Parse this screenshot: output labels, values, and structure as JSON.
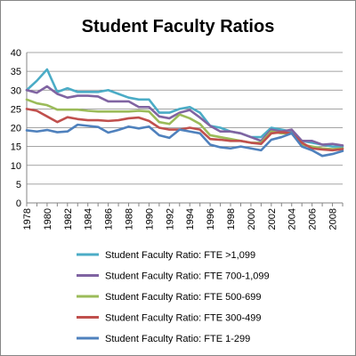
{
  "chart_data": {
    "type": "line",
    "title": "Student Faculty Ratios",
    "xlabel": "",
    "ylabel": "",
    "ylim": [
      0,
      40
    ],
    "xlim": [
      1978,
      2009
    ],
    "yticks": [
      0,
      5,
      10,
      15,
      20,
      25,
      30,
      35,
      40
    ],
    "xticks": [
      1978,
      1980,
      1982,
      1984,
      1986,
      1988,
      1990,
      1992,
      1994,
      1996,
      1998,
      2000,
      2002,
      2004,
      2006,
      2008
    ],
    "grid": "horizontal",
    "legend_position": "bottom",
    "x": [
      1978,
      1979,
      1980,
      1981,
      1982,
      1983,
      1984,
      1985,
      1986,
      1987,
      1988,
      1989,
      1990,
      1991,
      1992,
      1993,
      1994,
      1995,
      1996,
      1997,
      1998,
      1999,
      2000,
      2001,
      2002,
      2003,
      2004,
      2005,
      2006,
      2007,
      2008,
      2009
    ],
    "series": [
      {
        "name": "Student Faculty Ratio: FTE >1,099",
        "color": "#4BACC6",
        "values": [
          30,
          32.5,
          35.5,
          29.5,
          30.5,
          29.5,
          29.5,
          29.5,
          30,
          29,
          28,
          27.5,
          27.5,
          24,
          24,
          25,
          25.5,
          24,
          20.5,
          20,
          19,
          18.5,
          17.5,
          17.5,
          20,
          19.5,
          19,
          16.5,
          16,
          15.5,
          15,
          15
        ]
      },
      {
        "name": "Student Faculty Ratio: FTE 700-1,099",
        "color": "#8064A2",
        "values": [
          30,
          29.3,
          31,
          29,
          28,
          28.5,
          28.5,
          28.3,
          27,
          27,
          27,
          25.5,
          25.5,
          23,
          22.5,
          24,
          24.7,
          22.7,
          20.5,
          19,
          19,
          18.5,
          17.5,
          16.5,
          19.5,
          19,
          19.5,
          16.5,
          16.5,
          15.5,
          15.7,
          15.3
        ]
      },
      {
        "name": "Student Faculty Ratio: FTE 500-699",
        "color": "#9BBB59",
        "values": [
          27.5,
          26.5,
          26,
          24.8,
          24.8,
          24.8,
          24.5,
          24.3,
          24.3,
          24.3,
          24.3,
          24.5,
          24.3,
          21.5,
          21,
          23.5,
          22.5,
          21,
          18,
          17.5,
          17,
          16.5,
          16,
          16,
          19,
          18.5,
          18.5,
          15.5,
          15,
          14.5,
          14.3,
          14.5
        ]
      },
      {
        "name": "Student Faculty Ratio: FTE 300-499",
        "color": "#C0504D",
        "values": [
          25,
          24.5,
          23,
          21.5,
          22.8,
          22.3,
          22,
          22,
          21.8,
          22,
          22.5,
          22.7,
          21.8,
          20,
          19.5,
          19.5,
          20,
          19.5,
          17,
          16.8,
          16.5,
          16.5,
          16,
          15.7,
          18.5,
          18.8,
          18.5,
          16,
          14.5,
          14.2,
          14,
          14.3
        ]
      },
      {
        "name": "Student Faculty Ratio: FTE 1-299",
        "color": "#4F81BD",
        "values": [
          19.3,
          19,
          19.4,
          18.8,
          19,
          20.8,
          20.5,
          20.2,
          18.7,
          19.4,
          20.3,
          19.8,
          20.3,
          18,
          17.3,
          19.5,
          19,
          18.5,
          15.5,
          14.8,
          14.5,
          15,
          14.5,
          14,
          16.8,
          17.5,
          18.5,
          15,
          14,
          12.5,
          13,
          13.8
        ]
      }
    ]
  }
}
